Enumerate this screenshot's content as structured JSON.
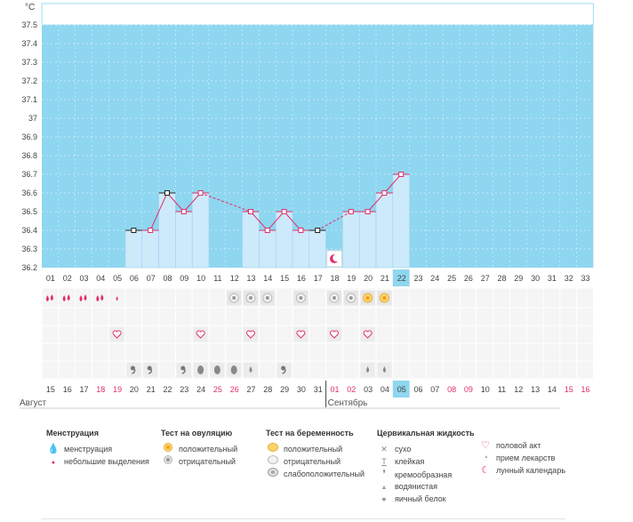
{
  "chart_data": {
    "type": "line",
    "unit": "°C",
    "yticks": [
      "37.5",
      "37.4",
      "37.3",
      "37.2",
      "37.1",
      "37",
      "36.9",
      "36.8",
      "36.7",
      "36.6",
      "36.5",
      "36.4",
      "36.3",
      "36.2"
    ],
    "ylim": [
      36.2,
      37.6
    ],
    "cycle_days": [
      "01",
      "02",
      "03",
      "04",
      "05",
      "06",
      "07",
      "08",
      "09",
      "10",
      "11",
      "12",
      "13",
      "14",
      "15",
      "16",
      "17",
      "18",
      "19",
      "20",
      "21",
      "22",
      "23",
      "24",
      "25",
      "26",
      "27",
      "28",
      "29",
      "30",
      "31",
      "32",
      "33"
    ],
    "calendar_days": [
      "15",
      "16",
      "17",
      "18",
      "19",
      "20",
      "21",
      "22",
      "23",
      "24",
      "25",
      "26",
      "27",
      "28",
      "29",
      "30",
      "31",
      "01",
      "02",
      "03",
      "04",
      "05",
      "06",
      "07",
      "08",
      "09",
      "10",
      "11",
      "12",
      "13",
      "14",
      "15",
      "16"
    ],
    "weekend_days": [
      3,
      4,
      10,
      11,
      17,
      18,
      24,
      25,
      31,
      32
    ],
    "highlight_index": 21,
    "temperatures": [
      null,
      null,
      null,
      null,
      null,
      36.4,
      36.4,
      36.6,
      36.5,
      36.6,
      null,
      null,
      36.5,
      36.4,
      36.5,
      36.4,
      36.4,
      null,
      36.5,
      36.5,
      36.6,
      36.7
    ],
    "marked_points": [
      5,
      7,
      16
    ],
    "dashed_segments": [
      [
        9,
        12
      ],
      [
        16,
        18
      ]
    ],
    "moon_index": 17,
    "months": [
      {
        "label": "Август",
        "start": 0
      },
      {
        "label": "Сентябрь",
        "start": 17
      }
    ],
    "symbols": {
      "mens": [
        {
          "i": 0,
          "t": "heavy"
        },
        {
          "i": 1,
          "t": "heavy"
        },
        {
          "i": 2,
          "t": "heavy"
        },
        {
          "i": 3,
          "t": "heavy"
        },
        {
          "i": 4,
          "t": "light"
        }
      ],
      "tests": [
        {
          "i": 11,
          "t": "ov-neg"
        },
        {
          "i": 12,
          "t": "ov-neg"
        },
        {
          "i": 13,
          "t": "ov-neg"
        },
        {
          "i": 15,
          "t": "ov-neg"
        },
        {
          "i": 17,
          "t": "ov-neg"
        },
        {
          "i": 18,
          "t": "ov-neg"
        },
        {
          "i": 19,
          "t": "ov-pos"
        },
        {
          "i": 20,
          "t": "ov-pos"
        }
      ],
      "sex": [
        4,
        9,
        12,
        15,
        17,
        19
      ],
      "fluid": [
        {
          "i": 5,
          "t": "cream"
        },
        {
          "i": 6,
          "t": "cream"
        },
        {
          "i": 8,
          "t": "cream"
        },
        {
          "i": 9,
          "t": "egg"
        },
        {
          "i": 10,
          "t": "egg"
        },
        {
          "i": 11,
          "t": "egg"
        },
        {
          "i": 12,
          "t": "watery"
        },
        {
          "i": 14,
          "t": "cream"
        },
        {
          "i": 19,
          "t": "watery"
        },
        {
          "i": 20,
          "t": "watery"
        }
      ]
    }
  },
  "legend": {
    "mens": {
      "title": "Менструация",
      "items": [
        {
          "icon": "drop-heavy",
          "label": "менструация"
        },
        {
          "icon": "drop-light",
          "label": "небольшие выделения"
        }
      ]
    },
    "ovulation": {
      "title": "Тест на овуляцию",
      "items": [
        {
          "icon": "ov-pos",
          "label": "положительный"
        },
        {
          "icon": "ov-neg",
          "label": "отрицательный"
        }
      ]
    },
    "pregnancy": {
      "title": "Тест на беременность",
      "items": [
        {
          "icon": "pr-pos",
          "label": "положительный"
        },
        {
          "icon": "pr-neg",
          "label": "отрицательный"
        },
        {
          "icon": "pr-weak",
          "label": "слабоположительный"
        }
      ]
    },
    "fluid": {
      "title": "Цервикальная жидкость",
      "items": [
        {
          "icon": "✕",
          "label": "сухо"
        },
        {
          "icon": "T",
          "label": "клейкая"
        },
        {
          "icon": "❜",
          "label": "кремообразная"
        },
        {
          "icon": "▲",
          "label": "водянистая"
        },
        {
          "icon": "●",
          "label": "яичный белок"
        }
      ]
    },
    "other": {
      "items": [
        {
          "icon": "♡",
          "label": "половой акт"
        },
        {
          "icon": "◔",
          "label": "прием лекарств"
        },
        {
          "icon": "☾",
          "label": "лунный календарь"
        }
      ]
    }
  },
  "colors": {
    "plot_bg": "#8fd6f0",
    "bar": "#cdeafb",
    "line": "#e0306b",
    "weekend": "#e0306b",
    "highlight": "#8fd6f0"
  }
}
